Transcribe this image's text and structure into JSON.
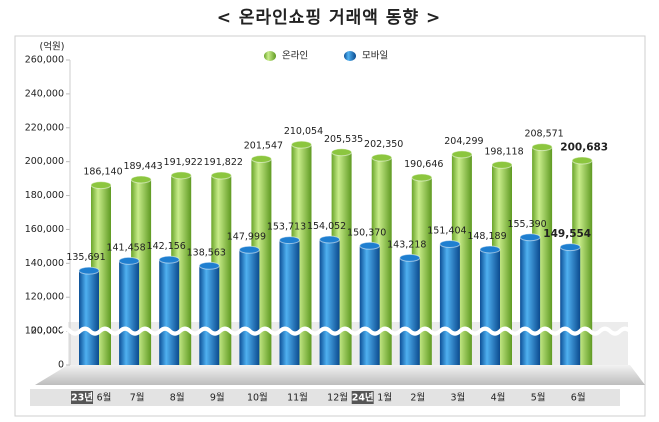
{
  "chart_data": {
    "type": "bar",
    "title": "< 온라인쇼핑 거래액 동향 >",
    "y_unit": "(억원)",
    "categories": [
      "6월",
      "7월",
      "8월",
      "9월",
      "10월",
      "11월",
      "12월",
      "1월",
      "2월",
      "3월",
      "4월",
      "5월",
      "6월"
    ],
    "years": [
      "23년",
      null,
      null,
      null,
      null,
      null,
      null,
      "24년",
      null,
      null,
      null,
      null,
      null
    ],
    "series": [
      {
        "name": "온라인",
        "color": "#8cc63f",
        "values": [
          186140,
          189443,
          191922,
          191822,
          201547,
          210054,
          205535,
          202350,
          190646,
          204299,
          198118,
          208571,
          200683
        ],
        "value_labels": [
          "186,140",
          "189,443",
          "191,922",
          "191,822",
          "201,547",
          "210,054",
          "205,535",
          "202,350",
          "190,646",
          "204,299",
          "198,118",
          "208,571",
          "200,683"
        ]
      },
      {
        "name": "모바일",
        "color": "#1f7fd0",
        "values": [
          135691,
          141458,
          142156,
          138563,
          147999,
          153713,
          154052,
          150370,
          143218,
          151404,
          148189,
          155390,
          149554
        ],
        "value_labels": [
          "135,691",
          "141,458",
          "142,156",
          "138,563",
          "147,999",
          "153,713",
          "154,052",
          "150,370",
          "143,218",
          "151,404",
          "148,189",
          "155,390",
          "149,554"
        ]
      }
    ],
    "ylim": [
      0,
      260000
    ],
    "axis_break": [
      20000,
      100000
    ],
    "yticks": [
      0,
      {
        "value": 20000,
        "label": "20,000"
      },
      {
        "value": 100000,
        "label": "100,000"
      },
      {
        "value": 120000,
        "label": "120,000"
      },
      {
        "value": 140000,
        "label": "140,000"
      },
      {
        "value": 160000,
        "label": "160,000"
      },
      {
        "value": 180000,
        "label": "180,000"
      },
      {
        "value": 200000,
        "label": "200,000"
      },
      {
        "value": 220000,
        "label": "220,000"
      },
      {
        "value": 240000,
        "label": "240,000"
      },
      {
        "value": 260000,
        "label": "260,000"
      }
    ],
    "highlight_last": true,
    "legend": "top"
  }
}
